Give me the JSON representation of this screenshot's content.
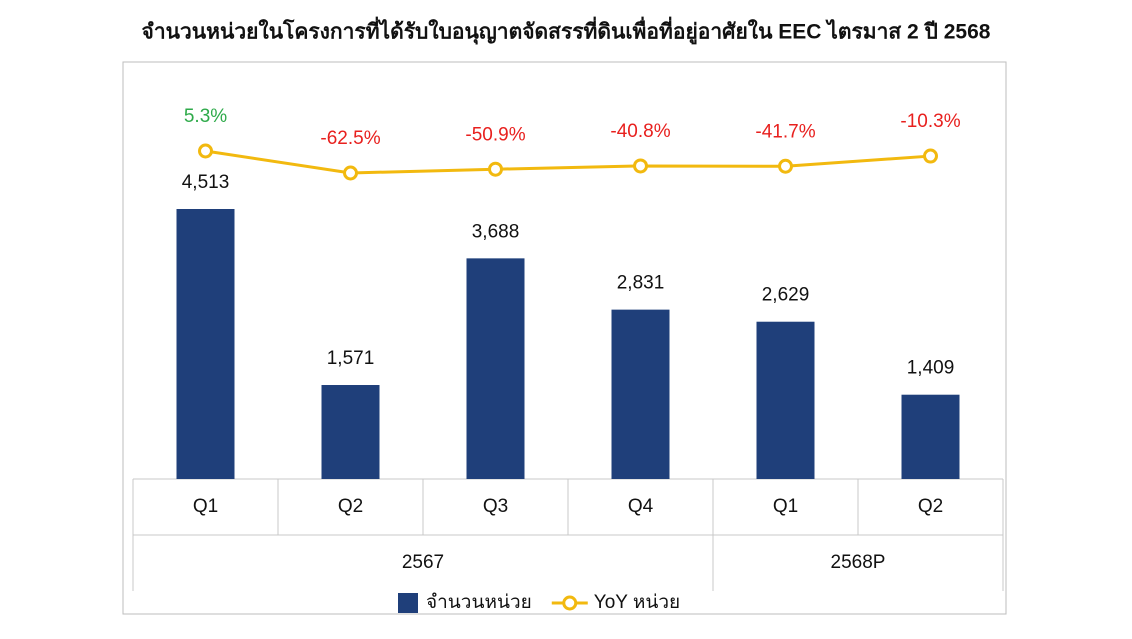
{
  "chart_data": {
    "type": "bar_line",
    "title": "จำนวนหน่วยในโครงการที่ได้รับใบอนุญาตจัดสรรที่ดินเพื่อที่อยู่อาศัยใน EEC ไตรมาส 2 ปี 2568",
    "categories": [
      "Q1",
      "Q2",
      "Q3",
      "Q4",
      "Q1",
      "Q2"
    ],
    "category_groups": [
      "2567",
      "2567",
      "2567",
      "2567",
      "2568P",
      "2568P"
    ],
    "series": [
      {
        "name": "จำนวนหน่วย",
        "type": "bar",
        "color": "#1f3f7a",
        "values": [
          4513,
          1571,
          3688,
          2831,
          2629,
          1409
        ],
        "value_labels": [
          "4,513",
          "1,571",
          "3,688",
          "2,831",
          "2,629",
          "1,409"
        ]
      },
      {
        "name": "YoY หน่วย",
        "type": "line",
        "axis": "y2",
        "color": "#f2b90f",
        "values": [
          5.3,
          -62.5,
          -50.9,
          -40.8,
          -41.7,
          -10.3
        ],
        "value_labels": [
          "5.3%",
          "-62.5%",
          "-50.9%",
          "-40.8%",
          "-41.7%",
          "-10.3%"
        ]
      }
    ],
    "legend": "bottom"
  }
}
